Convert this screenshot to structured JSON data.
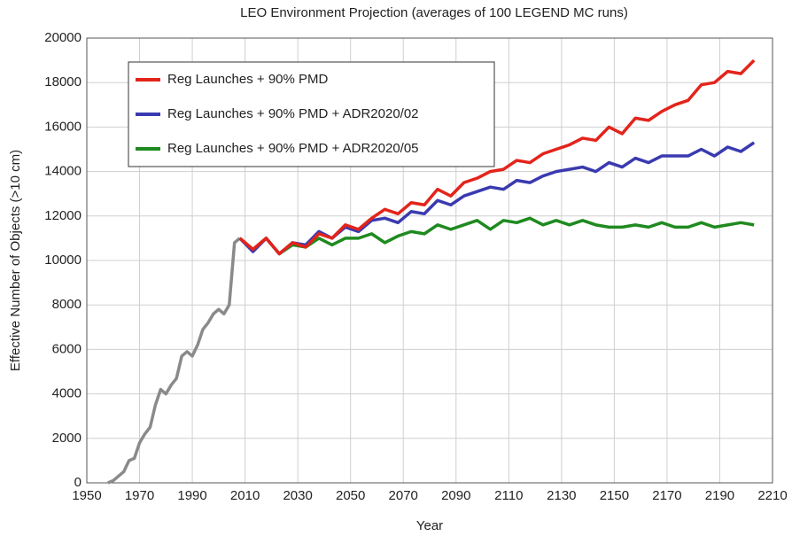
{
  "chart_data": {
    "type": "line",
    "title": "LEO Environment Projection (averages of 100 LEGEND MC runs)",
    "x_label": "Year",
    "y_label": "Effective Number of Objects (>10 cm)",
    "xlim": [
      1950,
      2210
    ],
    "xticks": [
      1950,
      1970,
      1990,
      2010,
      2030,
      2050,
      2070,
      2090,
      2110,
      2130,
      2150,
      2170,
      2190,
      2210
    ],
    "ylim": [
      0,
      20000
    ],
    "yticks": [
      0,
      2000,
      4000,
      6000,
      8000,
      10000,
      12000,
      14000,
      16000,
      18000,
      20000
    ],
    "grid": true,
    "legend": "upper left",
    "history": {
      "color": "#8a8a8a",
      "x": [
        1958,
        1960,
        1962,
        1964,
        1966,
        1968,
        1970,
        1972,
        1974,
        1976,
        1978,
        1980,
        1982,
        1984,
        1986,
        1988,
        1990,
        1992,
        1994,
        1996,
        1998,
        2000,
        2002,
        2004,
        2006,
        2008
      ],
      "values": [
        0,
        100,
        300,
        500,
        1000,
        1100,
        1800,
        2200,
        2500,
        3500,
        4200,
        4000,
        4400,
        4700,
        5700,
        5900,
        5700,
        6200,
        6900,
        7200,
        7600,
        7800,
        7600,
        8000,
        10800,
        11000
      ]
    },
    "x": [
      2008,
      2013,
      2018,
      2023,
      2028,
      2033,
      2038,
      2043,
      2048,
      2053,
      2058,
      2063,
      2068,
      2073,
      2078,
      2083,
      2088,
      2093,
      2098,
      2103,
      2108,
      2113,
      2118,
      2123,
      2128,
      2133,
      2138,
      2143,
      2148,
      2153,
      2158,
      2163,
      2168,
      2173,
      2178,
      2183,
      2188,
      2193,
      2198,
      2203
    ],
    "series": [
      {
        "name": "Reg Launches + 90% PMD",
        "color": "#e3241b",
        "values": [
          11000,
          10500,
          11000,
          10300,
          10800,
          10600,
          11200,
          11000,
          11600,
          11400,
          11900,
          12300,
          12100,
          12600,
          12500,
          13200,
          12900,
          13500,
          13700,
          14000,
          14100,
          14500,
          14400,
          14800,
          15000,
          15200,
          15500,
          15400,
          16000,
          15700,
          16400,
          16300,
          16700,
          17000,
          17200,
          17900,
          18000,
          18500,
          18400,
          19000
        ]
      },
      {
        "name": "Reg Launches + 90% PMD + ADR2020/02",
        "color": "#3a3ab0",
        "values": [
          11000,
          10400,
          11000,
          10300,
          10800,
          10700,
          11300,
          11000,
          11500,
          11300,
          11800,
          11900,
          11700,
          12200,
          12100,
          12700,
          12500,
          12900,
          13100,
          13300,
          13200,
          13600,
          13500,
          13800,
          14000,
          14100,
          14200,
          14000,
          14400,
          14200,
          14600,
          14400,
          14700,
          14700,
          14700,
          15000,
          14700,
          15100,
          14900,
          15300
        ]
      },
      {
        "name": "Reg Launches + 90% PMD + ADR2020/05",
        "color": "#1f8a1f",
        "values": [
          11000,
          10500,
          11000,
          10300,
          10700,
          10600,
          11000,
          10700,
          11000,
          11000,
          11200,
          10800,
          11100,
          11300,
          11200,
          11600,
          11400,
          11600,
          11800,
          11400,
          11800,
          11700,
          11900,
          11600,
          11800,
          11600,
          11800,
          11600,
          11500,
          11500,
          11600,
          11500,
          11700,
          11500,
          11500,
          11700,
          11500,
          11600,
          11700,
          11600
        ]
      }
    ]
  }
}
